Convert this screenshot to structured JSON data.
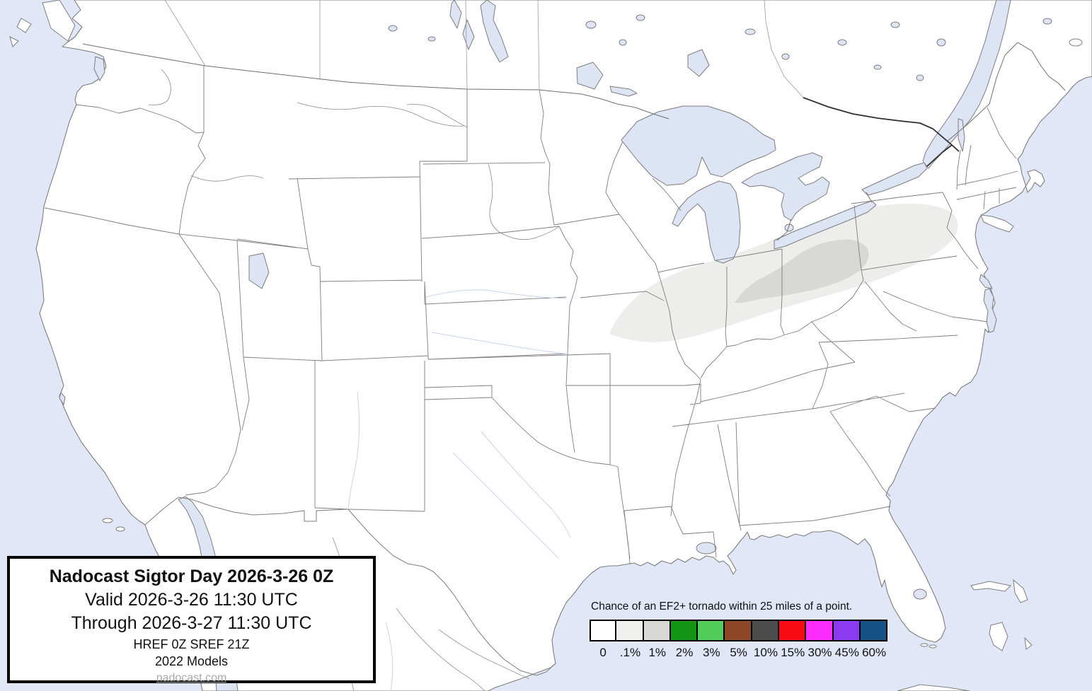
{
  "title_box": {
    "line1": "Nadocast Sigtor Day 2026-3-26 0Z",
    "line2": "Valid 2026-3-26 11:30 UTC",
    "line3": "Through 2026-3-27 11:30 UTC",
    "line4": "HREF 0Z SREF 21Z",
    "line5": "2022 Models",
    "link": "nadocast.com"
  },
  "legend": {
    "caption": "Chance of an EF2+ tornado within 25 miles of a point.",
    "entries": [
      {
        "label": "0",
        "color": "#ffffff"
      },
      {
        "label": ".1%",
        "color": "#f0f0ee"
      },
      {
        "label": "1%",
        "color": "#d8d8d6"
      },
      {
        "label": "2%",
        "color": "#149414"
      },
      {
        "label": "3%",
        "color": "#52cd5a"
      },
      {
        "label": "5%",
        "color": "#8b4726"
      },
      {
        "label": "10%",
        "color": "#4c4c4c"
      },
      {
        "label": "15%",
        "color": "#fa0a14"
      },
      {
        "label": "30%",
        "color": "#fb2bfb"
      },
      {
        "label": "45%",
        "color": "#8b3af0"
      },
      {
        "label": "60%",
        "color": "#175184"
      }
    ]
  },
  "map": {
    "ocean_color": "#e1e7f6",
    "lake_color": "#dde4f4",
    "land_color": "#ffffff",
    "border_color": "#7d7d7d",
    "contours": [
      {
        "level": ".1%",
        "color": "#ededeb"
      },
      {
        "level": "1%",
        "color": "#d8d8d6"
      }
    ],
    "forecast_region": "Midwest / Ohio Valley (Iowa–Illinois–Indiana–Ohio–Pennsylvania)"
  }
}
